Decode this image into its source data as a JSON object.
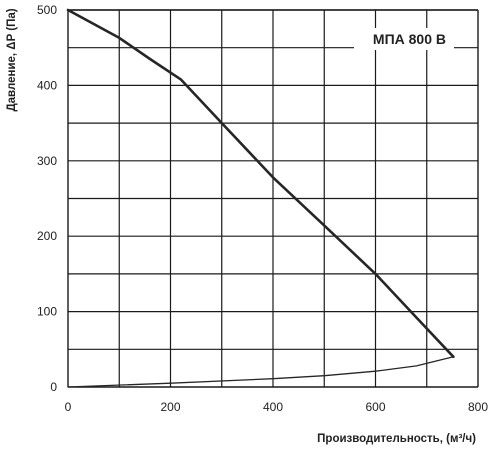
{
  "chart_data": {
    "type": "line",
    "title": "МПА 800 В",
    "xlabel": "Производительность, (м³/ч)",
    "ylabel": "Давление, ΔP (Па)",
    "xlim": [
      0,
      800
    ],
    "ylim": [
      0,
      500
    ],
    "x_ticks": [
      "0",
      "200",
      "400",
      "600",
      "800"
    ],
    "y_ticks": [
      "0",
      "100",
      "200",
      "300",
      "400",
      "500"
    ],
    "grid": true,
    "series": [
      {
        "values": [
          {
            "x": 0,
            "y": 500
          },
          {
            "x": 100,
            "y": 463
          },
          {
            "x": 160,
            "y": 435
          },
          {
            "x": 220,
            "y": 408
          },
          {
            "x": 300,
            "y": 350
          },
          {
            "x": 400,
            "y": 278
          },
          {
            "x": 500,
            "y": 214
          },
          {
            "x": 600,
            "y": 150
          },
          {
            "x": 680,
            "y": 92
          },
          {
            "x": 752,
            "y": 40
          }
        ]
      },
      {
        "values": [
          {
            "x": 0,
            "y": 0
          },
          {
            "x": 200,
            "y": 5
          },
          {
            "x": 400,
            "y": 11
          },
          {
            "x": 500,
            "y": 15
          },
          {
            "x": 600,
            "y": 21
          },
          {
            "x": 680,
            "y": 28
          },
          {
            "x": 752,
            "y": 40
          }
        ]
      }
    ],
    "colors": {
      "grid": "#1a1a1a",
      "line": "#262626"
    }
  }
}
